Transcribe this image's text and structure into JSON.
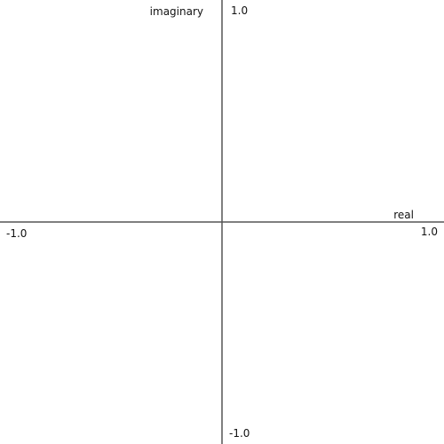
{
  "axes": {
    "real_label": "real",
    "imaginary_label": "imaginary",
    "x_min_label": "-1.0",
    "x_max_label": "1.0",
    "y_min_label": "-1.0",
    "y_max_label": "1.0",
    "x_range": [
      -1.0,
      1.0
    ],
    "y_range": [
      -1.0,
      1.0
    ]
  },
  "colors": {
    "background": "#ffffff",
    "axis_line": "#555555",
    "text": "#111111"
  }
}
